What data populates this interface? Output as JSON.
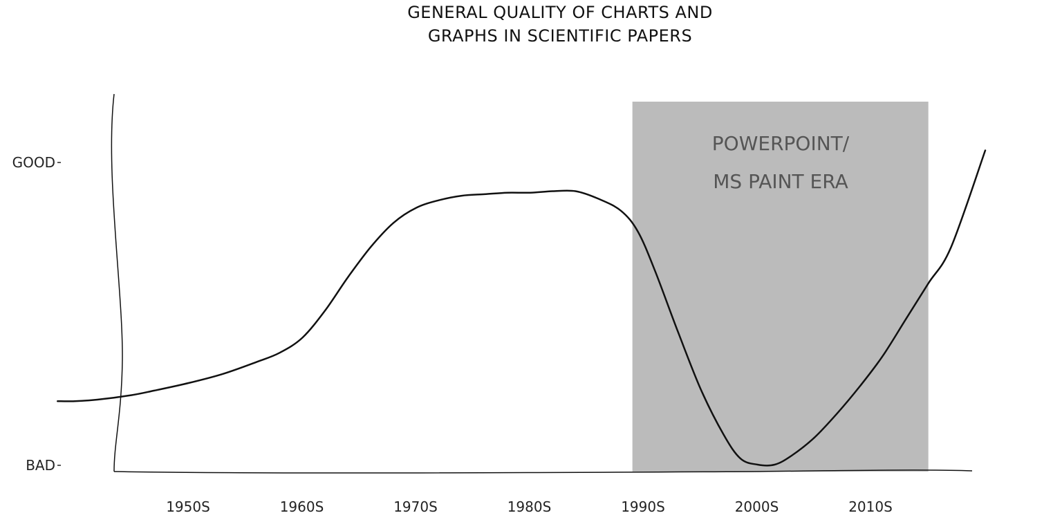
{
  "chart_data": {
    "type": "line",
    "title_lines": [
      "GENERAL QUALITY OF CHARTS AND",
      "GRAPHS IN SCIENTIFIC PAPERS"
    ],
    "xlabel": "",
    "ylabel": "",
    "x_ticks": [
      "1950S",
      "1960S",
      "1970S",
      "1980S",
      "1990S",
      "2000S",
      "2010S"
    ],
    "y_ticks": [
      "BAD",
      "GOOD"
    ],
    "x_range": [
      1940,
      2020
    ],
    "y_range": [
      0,
      1
    ],
    "grid": false,
    "legend": "none",
    "colors": {
      "line": "#111111",
      "axis": "#111111",
      "shade": "#bbbbbb",
      "era_text": "#555555"
    },
    "annotation": {
      "lines": [
        "POWERPOINT/",
        "MS PAINT ERA"
      ],
      "x_start": 1989,
      "x_end": 2015
    },
    "series": [
      {
        "x": [
          1938.5,
          1940,
          1942,
          1945,
          1947,
          1950,
          1953,
          1956,
          1958,
          1960,
          1962,
          1964,
          1966,
          1968,
          1970,
          1972,
          1974,
          1976,
          1978,
          1980,
          1982,
          1984,
          1986,
          1988,
          1989.5,
          1991,
          1993,
          1995,
          1997,
          1998.5,
          2000,
          2001.5,
          2003,
          2005,
          2007,
          2009,
          2011,
          2013,
          2015,
          2017,
          2020
        ],
        "y": [
          0.21,
          0.21,
          0.215,
          0.23,
          0.245,
          0.27,
          0.3,
          0.34,
          0.37,
          0.42,
          0.51,
          0.62,
          0.72,
          0.8,
          0.85,
          0.875,
          0.89,
          0.895,
          0.9,
          0.9,
          0.905,
          0.905,
          0.88,
          0.84,
          0.77,
          0.64,
          0.44,
          0.25,
          0.1,
          0.02,
          0.0,
          0.0,
          0.03,
          0.09,
          0.17,
          0.26,
          0.36,
          0.48,
          0.6,
          0.72,
          1.04
        ]
      }
    ]
  }
}
